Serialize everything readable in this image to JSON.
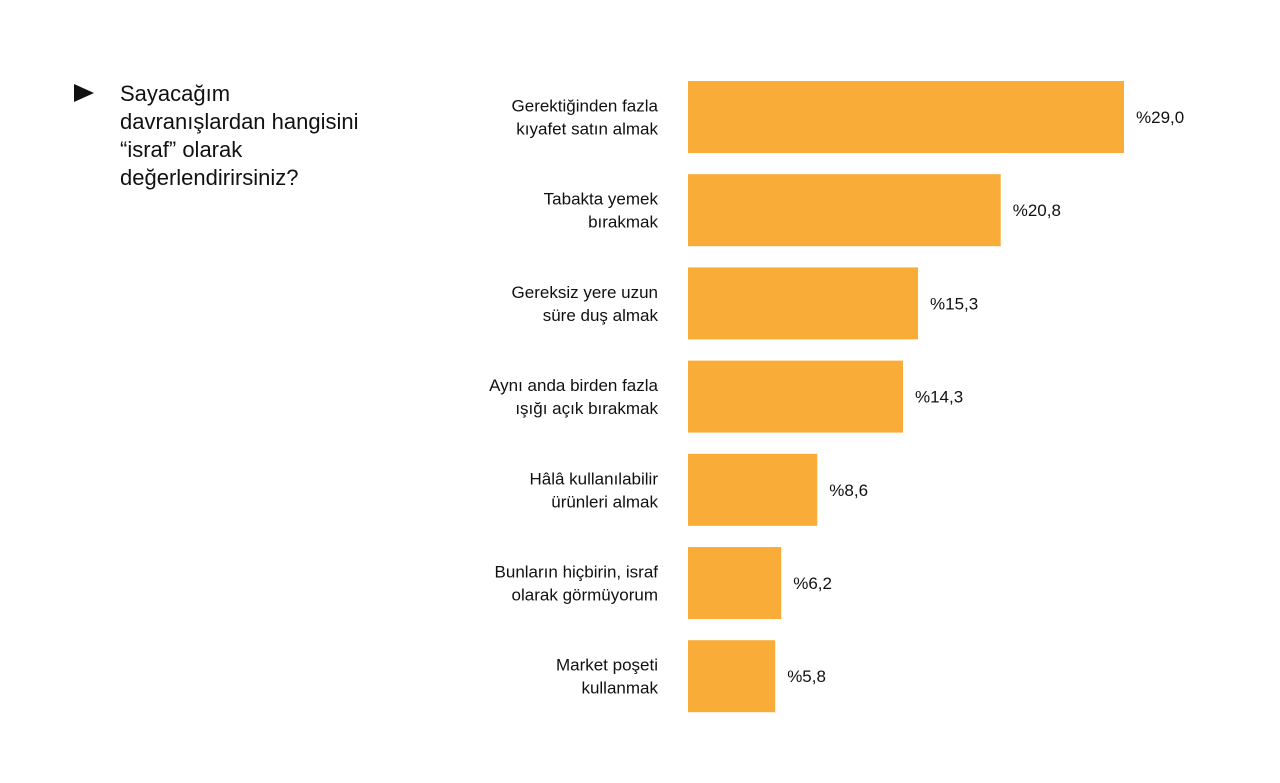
{
  "question": {
    "text": "Sayacağım davranışlardan hangisini “israf” olarak değerlendirirsiniz?"
  },
  "chart_data": {
    "type": "bar",
    "orientation": "horizontal",
    "categories": [
      "Gerektiğinden fazla kıyafet satın almak",
      "Tabakta yemek bırakmak",
      "Gereksiz yere uzun süre duş almak",
      "Aynı anda birden fazla ışığı açık bırakmak",
      "Hâlâ kullanılabilir ürünleri almak",
      "Bunların hiçbirin, israf olarak görmüyorum",
      "Market poşeti kullanmak"
    ],
    "category_lines": [
      [
        "Gerektiğinden fazla",
        "kıyafet satın almak"
      ],
      [
        "Tabakta yemek",
        "bırakmak"
      ],
      [
        "Gereksiz yere uzun",
        "süre duş almak"
      ],
      [
        "Aynı anda birden fazla",
        "ışığı açık bırakmak"
      ],
      [
        "Hâlâ kullanılabilir",
        "ürünleri almak"
      ],
      [
        "Bunların hiçbirin, israf",
        "olarak görmüyorum"
      ],
      [
        "Market poşeti",
        "kullanmak"
      ]
    ],
    "values": [
      29.0,
      20.8,
      15.3,
      14.3,
      8.6,
      6.2,
      5.8
    ],
    "value_labels": [
      "%29,0",
      "%20,8",
      "%15,3",
      "%14,3",
      "%8,6",
      "%6,2",
      "%5,8"
    ],
    "xlim": [
      0,
      29.0
    ],
    "grid": false,
    "legend": "none",
    "bar_color": "#F9AD38"
  }
}
